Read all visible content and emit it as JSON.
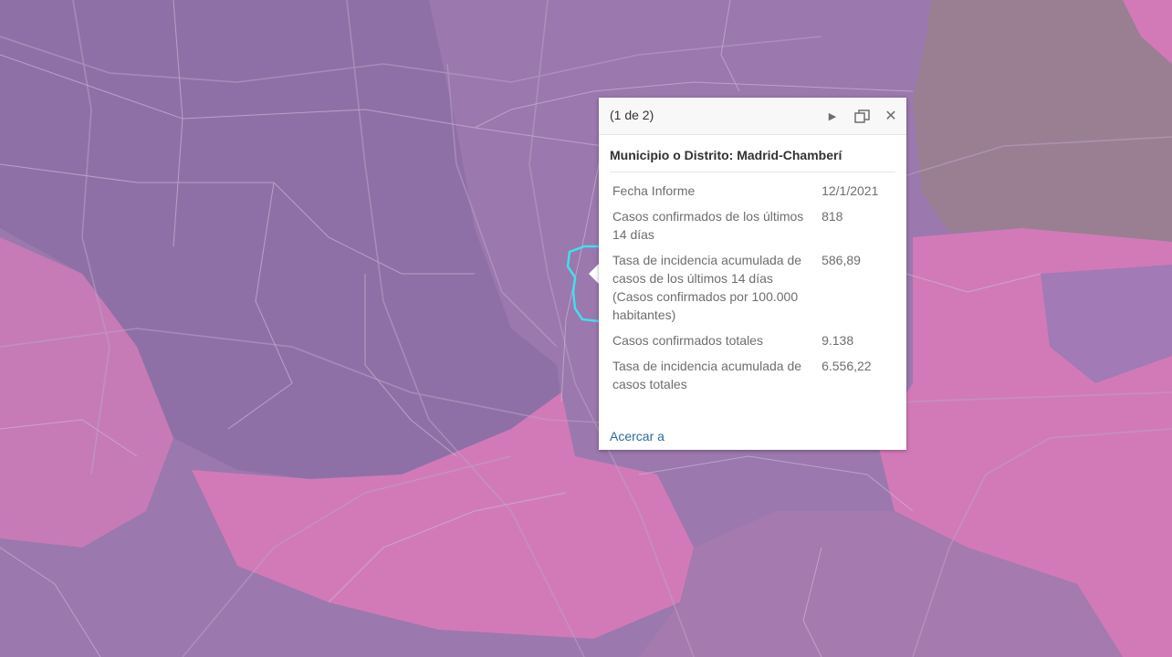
{
  "map": {
    "highlight_color": "#3fe0ee",
    "zone_colors": {
      "purple": "#9b78ad",
      "dark_purple": "#8f70a6",
      "pink": "#d27ab8",
      "mauve": "#9a7f92"
    }
  },
  "popup": {
    "pager": "(1 de 2)",
    "next_icon": "next-feature-icon",
    "maximize_icon": "maximize-icon",
    "close_icon": "close-icon",
    "title": "Municipio o Distrito: Madrid-Chamberí",
    "fields": [
      {
        "name": "Fecha Informe",
        "value": "12/1/2021"
      },
      {
        "name": "Casos confirmados de los últimos 14 días",
        "value": "818"
      },
      {
        "name": "Tasa de incidencia acumulada de casos de los últimos 14 días (Casos confirmados por 100.000 habitantes)",
        "value": "586,89"
      },
      {
        "name": "Casos confirmados totales",
        "value": "9.138"
      },
      {
        "name": "Tasa de incidencia acumulada de casos totales",
        "value": "6.556,22"
      }
    ],
    "zoom_label": "Acercar a"
  }
}
